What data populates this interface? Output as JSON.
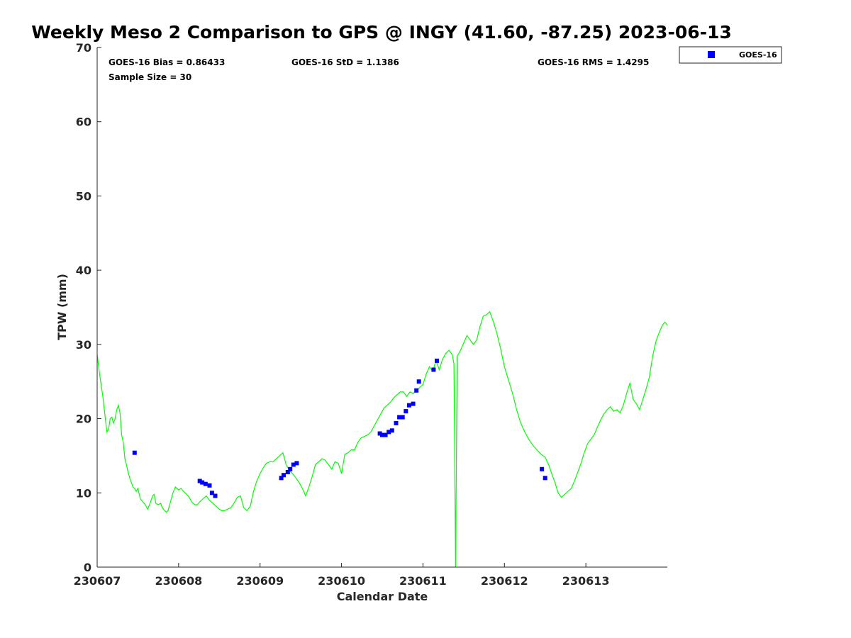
{
  "chart_data": {
    "type": "scatter",
    "title": "Weekly Meso 2 Comparison to GPS @ INGY (41.60, -87.25) 2023-06-13",
    "xlabel": "Calendar Date",
    "ylabel": "TPW (mm)",
    "x_tick_labels": [
      "230607",
      "230608",
      "230609",
      "230610",
      "230611",
      "230612",
      "230613"
    ],
    "x_tick_values": [
      0,
      1,
      2,
      3,
      4,
      5,
      6
    ],
    "xlim": [
      0,
      7
    ],
    "ylim": [
      0,
      70
    ],
    "y_ticks": [
      0,
      10,
      20,
      30,
      40,
      50,
      60,
      70
    ],
    "grid": false,
    "legend_position": "top-right outside",
    "stats": {
      "bias": "GOES-16 Bias = 0.86433",
      "std": "GOES-16 StD = 1.1386",
      "rms": "GOES-16 RMS = 1.4295",
      "sample_size": "Sample Size = 30"
    },
    "series": [
      {
        "name": "GOES-16",
        "kind": "scatter",
        "marker": "square",
        "color": "#0000ff",
        "x": [
          0.46,
          1.26,
          1.29,
          1.33,
          1.38,
          1.41,
          1.45,
          2.26,
          2.29,
          2.34,
          2.37,
          2.41,
          2.45,
          3.47,
          3.5,
          3.54,
          3.58,
          3.62,
          3.67,
          3.71,
          3.75,
          3.79,
          3.83,
          3.88,
          3.92,
          3.95,
          4.13,
          4.17,
          5.46,
          5.5
        ],
        "y": [
          15.4,
          11.6,
          11.4,
          11.2,
          11.0,
          10.0,
          9.6,
          12.0,
          12.4,
          12.8,
          13.2,
          13.8,
          14.0,
          18.0,
          17.8,
          17.8,
          18.2,
          18.4,
          19.4,
          20.2,
          20.2,
          21.0,
          21.8,
          22.0,
          23.8,
          25.0,
          26.6,
          27.8,
          13.2,
          12.0
        ]
      },
      {
        "name": "",
        "kind": "line",
        "color": "#00ff00",
        "x": [
          0.0,
          0.03,
          0.07,
          0.1,
          0.12,
          0.14,
          0.16,
          0.18,
          0.2,
          0.22,
          0.24,
          0.26,
          0.28,
          0.3,
          0.32,
          0.34,
          0.36,
          0.38,
          0.4,
          0.42,
          0.44,
          0.46,
          0.48,
          0.5,
          0.53,
          0.56,
          0.59,
          0.62,
          0.65,
          0.68,
          0.7,
          0.72,
          0.75,
          0.78,
          0.8,
          0.83,
          0.85,
          0.87,
          0.9,
          0.93,
          0.96,
          1.0,
          1.03,
          1.06,
          1.1,
          1.13,
          1.16,
          1.2,
          1.23,
          1.26,
          1.3,
          1.34,
          1.38,
          1.42,
          1.46,
          1.5,
          1.53,
          1.56,
          1.6,
          1.64,
          1.68,
          1.72,
          1.76,
          1.8,
          1.84,
          1.88,
          1.92,
          1.96,
          2.0,
          2.04,
          2.08,
          2.12,
          2.16,
          2.2,
          2.24,
          2.28,
          2.32,
          2.36,
          2.4,
          2.44,
          2.48,
          2.52,
          2.56,
          2.6,
          2.64,
          2.68,
          2.72,
          2.76,
          2.8,
          2.84,
          2.88,
          2.92,
          2.96,
          3.0,
          3.04,
          3.08,
          3.12,
          3.16,
          3.2,
          3.24,
          3.28,
          3.32,
          3.36,
          3.4,
          3.44,
          3.48,
          3.52,
          3.56,
          3.6,
          3.64,
          3.68,
          3.72,
          3.76,
          3.8,
          3.84,
          3.88,
          3.92,
          3.96,
          4.0,
          4.04,
          4.08,
          4.12,
          4.16,
          4.2,
          4.24,
          4.28,
          4.32,
          4.36,
          4.38,
          4.4,
          4.42,
          4.46,
          4.5,
          4.54,
          4.58,
          4.62,
          4.66,
          4.7,
          4.74,
          4.78,
          4.82,
          4.86,
          4.9,
          4.95,
          5.0,
          5.05,
          5.1,
          5.15,
          5.2,
          5.25,
          5.3,
          5.35,
          5.4,
          5.45,
          5.5,
          5.55,
          5.58,
          5.62,
          5.66,
          5.7,
          5.74,
          5.78,
          5.82,
          5.86,
          5.9,
          5.94,
          5.98,
          6.02,
          6.06,
          6.1,
          6.14,
          6.18,
          6.22,
          6.26,
          6.3,
          6.34,
          6.38,
          6.42,
          6.46,
          6.5,
          6.54,
          6.58,
          6.62,
          6.66,
          6.7,
          6.74,
          6.78,
          6.82,
          6.86,
          6.9,
          6.94,
          6.97,
          7.0
        ],
        "y": [
          28.6,
          26.0,
          23.0,
          20.0,
          18.2,
          18.6,
          20.0,
          20.2,
          19.4,
          20.0,
          21.2,
          21.8,
          20.8,
          17.8,
          16.8,
          14.6,
          13.8,
          12.8,
          12.0,
          11.4,
          10.8,
          10.6,
          10.2,
          10.6,
          9.2,
          8.8,
          8.4,
          7.8,
          8.6,
          9.6,
          9.8,
          8.6,
          8.4,
          8.6,
          8.0,
          7.6,
          7.4,
          7.6,
          8.8,
          10.0,
          10.8,
          10.4,
          10.6,
          10.2,
          9.8,
          9.4,
          8.8,
          8.4,
          8.4,
          8.8,
          9.2,
          9.6,
          9.0,
          8.6,
          8.2,
          7.8,
          7.6,
          7.6,
          7.8,
          8.0,
          8.6,
          9.4,
          9.6,
          8.0,
          7.6,
          8.2,
          10.2,
          11.6,
          12.6,
          13.4,
          14.0,
          14.2,
          14.2,
          14.6,
          15.0,
          15.4,
          13.8,
          13.0,
          12.6,
          12.0,
          11.4,
          10.6,
          9.6,
          10.8,
          12.2,
          13.8,
          14.2,
          14.6,
          14.4,
          13.8,
          13.2,
          14.2,
          14.0,
          12.6,
          15.2,
          15.4,
          15.8,
          15.8,
          16.8,
          17.4,
          17.6,
          17.8,
          18.2,
          19.0,
          19.8,
          20.6,
          21.4,
          21.8,
          22.2,
          22.8,
          23.2,
          23.6,
          23.6,
          23.0,
          23.6,
          23.4,
          23.8,
          24.2,
          24.6,
          26.0,
          27.0,
          26.4,
          27.8,
          26.6,
          28.0,
          28.8,
          29.2,
          28.6,
          27.4,
          0.0,
          28.4,
          29.2,
          30.2,
          31.2,
          30.6,
          30.0,
          30.6,
          32.4,
          33.8,
          34.0,
          34.4,
          33.2,
          31.8,
          29.6,
          27.0,
          25.2,
          23.4,
          21.2,
          19.4,
          18.2,
          17.2,
          16.4,
          15.8,
          15.2,
          14.8,
          13.6,
          12.6,
          11.4,
          10.0,
          9.4,
          9.8,
          10.2,
          10.6,
          11.6,
          12.8,
          14.0,
          15.4,
          16.6,
          17.2,
          17.8,
          18.8,
          19.8,
          20.6,
          21.2,
          21.6,
          21.0,
          21.2,
          20.8,
          21.8,
          23.4,
          24.8,
          22.6,
          22.0,
          21.2,
          22.6,
          24.0,
          25.6,
          28.4,
          30.4,
          31.6,
          32.6,
          33.0,
          32.6
        ]
      }
    ],
    "legend": [
      {
        "name": "GOES-16",
        "marker": "square",
        "color": "#0000ff"
      }
    ]
  }
}
